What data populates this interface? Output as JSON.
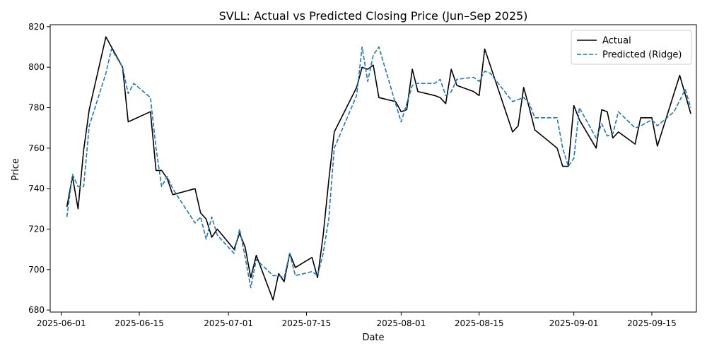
{
  "chart_data": {
    "type": "line",
    "title": "SVLL: Actual vs Predicted Closing Price (Jun–Sep 2025)",
    "xlabel": "Date",
    "ylabel": "Price",
    "xlim": [
      "2025-05-30",
      "2025-09-23"
    ],
    "ylim": [
      679,
      821
    ],
    "x_ticks": [
      "2025-06-01",
      "2025-06-15",
      "2025-07-01",
      "2025-07-15",
      "2025-08-01",
      "2025-08-15",
      "2025-09-01",
      "2025-09-15"
    ],
    "y_ticks": [
      680,
      700,
      720,
      740,
      760,
      780,
      800,
      820
    ],
    "grid": false,
    "legend": "top-right",
    "series": [
      {
        "name": "Actual",
        "color": "#000000",
        "dash": "solid",
        "points": [
          [
            "2025-06-02",
            731
          ],
          [
            "2025-06-03",
            746
          ],
          [
            "2025-06-04",
            730
          ],
          [
            "2025-06-05",
            759
          ],
          [
            "2025-06-06",
            779
          ],
          [
            "2025-06-09",
            815
          ],
          [
            "2025-06-12",
            800
          ],
          [
            "2025-06-13",
            773
          ],
          [
            "2025-06-17",
            778
          ],
          [
            "2025-06-18",
            749
          ],
          [
            "2025-06-19",
            749
          ],
          [
            "2025-06-20",
            745
          ],
          [
            "2025-06-21",
            737
          ],
          [
            "2025-06-25",
            740
          ],
          [
            "2025-06-26",
            728
          ],
          [
            "2025-06-27",
            725
          ],
          [
            "2025-06-28",
            716
          ],
          [
            "2025-06-29",
            720
          ],
          [
            "2025-07-02",
            710
          ],
          [
            "2025-07-03",
            718
          ],
          [
            "2025-07-04",
            711
          ],
          [
            "2025-07-05",
            696
          ],
          [
            "2025-07-06",
            707
          ],
          [
            "2025-07-09",
            685
          ],
          [
            "2025-07-10",
            698
          ],
          [
            "2025-07-11",
            694
          ],
          [
            "2025-07-12",
            708
          ],
          [
            "2025-07-13",
            701
          ],
          [
            "2025-07-16",
            706
          ],
          [
            "2025-07-17",
            696
          ],
          [
            "2025-07-18",
            717
          ],
          [
            "2025-07-19",
            744
          ],
          [
            "2025-07-20",
            768
          ],
          [
            "2025-07-24",
            790
          ],
          [
            "2025-07-25",
            800
          ],
          [
            "2025-07-26",
            799
          ],
          [
            "2025-07-27",
            801
          ],
          [
            "2025-07-28",
            785
          ],
          [
            "2025-07-31",
            783
          ],
          [
            "2025-08-01",
            778
          ],
          [
            "2025-08-02",
            779
          ],
          [
            "2025-08-03",
            799
          ],
          [
            "2025-08-04",
            788
          ],
          [
            "2025-08-07",
            786
          ],
          [
            "2025-08-08",
            785
          ],
          [
            "2025-08-09",
            782
          ],
          [
            "2025-08-10",
            799
          ],
          [
            "2025-08-11",
            791
          ],
          [
            "2025-08-14",
            788
          ],
          [
            "2025-08-15",
            786
          ],
          [
            "2025-08-16",
            809
          ],
          [
            "2025-08-21",
            768
          ],
          [
            "2025-08-22",
            771
          ],
          [
            "2025-08-23",
            790
          ],
          [
            "2025-08-24",
            780
          ],
          [
            "2025-08-25",
            769
          ],
          [
            "2025-08-29",
            760
          ],
          [
            "2025-08-30",
            751
          ],
          [
            "2025-08-31",
            751
          ],
          [
            "2025-09-01",
            781
          ],
          [
            "2025-09-02",
            774
          ],
          [
            "2025-09-05",
            760
          ],
          [
            "2025-09-06",
            779
          ],
          [
            "2025-09-07",
            778
          ],
          [
            "2025-09-08",
            765
          ],
          [
            "2025-09-09",
            768
          ],
          [
            "2025-09-12",
            762
          ],
          [
            "2025-09-13",
            775
          ],
          [
            "2025-09-15",
            775
          ],
          [
            "2025-09-16",
            761
          ],
          [
            "2025-09-20",
            796
          ],
          [
            "2025-09-22",
            777
          ]
        ]
      },
      {
        "name": "Predicted (Ridge)",
        "color": "#1f77b4",
        "dash": "dashed",
        "points": [
          [
            "2025-06-02",
            726
          ],
          [
            "2025-06-03",
            747
          ],
          [
            "2025-06-04",
            741
          ],
          [
            "2025-06-05",
            741
          ],
          [
            "2025-06-06",
            771
          ],
          [
            "2025-06-09",
            797
          ],
          [
            "2025-06-10",
            809
          ],
          [
            "2025-06-12",
            800
          ],
          [
            "2025-06-13",
            787
          ],
          [
            "2025-06-14",
            792
          ],
          [
            "2025-06-17",
            785
          ],
          [
            "2025-06-18",
            760
          ],
          [
            "2025-06-19",
            741
          ],
          [
            "2025-06-20",
            746
          ],
          [
            "2025-06-21",
            740
          ],
          [
            "2025-06-25",
            723
          ],
          [
            "2025-06-26",
            726
          ],
          [
            "2025-06-27",
            715
          ],
          [
            "2025-06-28",
            726
          ],
          [
            "2025-06-29",
            717
          ],
          [
            "2025-07-02",
            708
          ],
          [
            "2025-07-03",
            720
          ],
          [
            "2025-07-04",
            706
          ],
          [
            "2025-07-05",
            691
          ],
          [
            "2025-07-06",
            705
          ],
          [
            "2025-07-09",
            697
          ],
          [
            "2025-07-10",
            697
          ],
          [
            "2025-07-11",
            696
          ],
          [
            "2025-07-12",
            708
          ],
          [
            "2025-07-13",
            697
          ],
          [
            "2025-07-16",
            699
          ],
          [
            "2025-07-17",
            697
          ],
          [
            "2025-07-18",
            708
          ],
          [
            "2025-07-19",
            725
          ],
          [
            "2025-07-20",
            760
          ],
          [
            "2025-07-24",
            786
          ],
          [
            "2025-07-25",
            810
          ],
          [
            "2025-07-26",
            793
          ],
          [
            "2025-07-27",
            806
          ],
          [
            "2025-07-28",
            810
          ],
          [
            "2025-07-31",
            782
          ],
          [
            "2025-08-01",
            773
          ],
          [
            "2025-08-02",
            782
          ],
          [
            "2025-08-03",
            791
          ],
          [
            "2025-08-04",
            792
          ],
          [
            "2025-08-07",
            792
          ],
          [
            "2025-08-08",
            794
          ],
          [
            "2025-08-09",
            786
          ],
          [
            "2025-08-10",
            788
          ],
          [
            "2025-08-11",
            794
          ],
          [
            "2025-08-14",
            795
          ],
          [
            "2025-08-15",
            793
          ],
          [
            "2025-08-16",
            798
          ],
          [
            "2025-08-17",
            797
          ],
          [
            "2025-08-21",
            783
          ],
          [
            "2025-08-23",
            785
          ],
          [
            "2025-08-24",
            782
          ],
          [
            "2025-08-25",
            775
          ],
          [
            "2025-08-29",
            775
          ],
          [
            "2025-08-30",
            760
          ],
          [
            "2025-08-31",
            751
          ],
          [
            "2025-09-01",
            755
          ],
          [
            "2025-09-02",
            780
          ],
          [
            "2025-09-05",
            765
          ],
          [
            "2025-09-06",
            772
          ],
          [
            "2025-09-07",
            766
          ],
          [
            "2025-09-08",
            767
          ],
          [
            "2025-09-09",
            778
          ],
          [
            "2025-09-12",
            770
          ],
          [
            "2025-09-13",
            771
          ],
          [
            "2025-09-15",
            774
          ],
          [
            "2025-09-16",
            771
          ],
          [
            "2025-09-19",
            778
          ],
          [
            "2025-09-21",
            789
          ],
          [
            "2025-09-22",
            780
          ]
        ]
      }
    ]
  }
}
